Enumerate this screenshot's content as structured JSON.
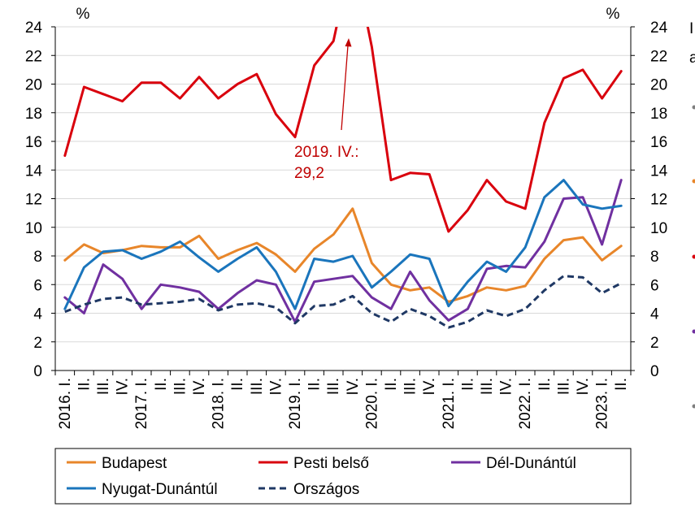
{
  "chart_data": {
    "type": "line",
    "ylim": [
      0,
      24
    ],
    "yticks": [
      0,
      2,
      4,
      6,
      8,
      10,
      12,
      14,
      16,
      18,
      20,
      22,
      24
    ],
    "y_unit_left": "%",
    "y_unit_right": "%",
    "right_axis_ticks": [
      "0",
      "2",
      "4",
      "6",
      "8",
      "10",
      "12",
      "14",
      "16",
      "18",
      "20",
      "22",
      "24"
    ],
    "x_labels": [
      "2016. I.",
      "II.",
      "III.",
      "IV.",
      "2017. I.",
      "II.",
      "III.",
      "IV.",
      "2018. I.",
      "II.",
      "III.",
      "IV.",
      "2019. I.",
      "II.",
      "III.",
      "IV.",
      "2020. I.",
      "II.",
      "III.",
      "IV.",
      "2021. I.",
      "II.",
      "III.",
      "IV.",
      "2022. I.",
      "II.",
      "III.",
      "IV.",
      "2023. I.",
      "II."
    ],
    "series": [
      {
        "name": "Budapest",
        "color": "#e8862a",
        "dash": false,
        "values": [
          7.7,
          8.8,
          8.2,
          8.4,
          8.7,
          8.6,
          8.6,
          9.4,
          7.8,
          8.4,
          8.9,
          8.1,
          6.9,
          8.5,
          9.5,
          11.3,
          7.5,
          6.0,
          5.6,
          5.8,
          4.8,
          5.2,
          5.8,
          5.6,
          5.9,
          7.8,
          9.1,
          9.3,
          7.7,
          8.7
        ]
      },
      {
        "name": "Pesti belső",
        "color": "#d9000d",
        "dash": false,
        "values": [
          15.0,
          19.8,
          19.3,
          18.8,
          20.1,
          20.1,
          19.0,
          20.5,
          19.0,
          20.0,
          20.7,
          17.9,
          16.3,
          21.3,
          23.0,
          29.2,
          22.6,
          13.3,
          13.8,
          13.7,
          9.7,
          11.2,
          13.3,
          11.8,
          11.3,
          17.3,
          20.4,
          21.0,
          19.0,
          20.9
        ]
      },
      {
        "name": "Dél-Dunántúl",
        "color": "#7030a0",
        "dash": false,
        "values": [
          5.1,
          4.0,
          7.4,
          6.4,
          4.3,
          6.0,
          5.8,
          5.5,
          4.3,
          5.4,
          6.3,
          6.0,
          3.4,
          6.2,
          6.4,
          6.6,
          5.1,
          4.3,
          6.9,
          4.9,
          3.5,
          4.3,
          7.1,
          7.3,
          7.2,
          9.0,
          12.0,
          12.1,
          8.8,
          13.3
        ]
      },
      {
        "name": "Nyugat-Dunántúl",
        "color": "#1a75bc",
        "dash": false,
        "values": [
          4.3,
          7.2,
          8.3,
          8.4,
          7.8,
          8.3,
          9.0,
          7.9,
          6.9,
          7.8,
          8.6,
          6.9,
          4.3,
          7.8,
          7.6,
          8.0,
          5.8,
          6.9,
          8.1,
          7.8,
          4.5,
          6.2,
          7.6,
          6.9,
          8.6,
          12.1,
          13.3,
          11.6,
          11.3,
          11.5
        ]
      },
      {
        "name": "Országos",
        "color": "#1f3864",
        "dash": true,
        "values": [
          4.1,
          4.6,
          5.0,
          5.1,
          4.6,
          4.7,
          4.8,
          5.0,
          4.2,
          4.6,
          4.7,
          4.4,
          3.3,
          4.5,
          4.6,
          5.2,
          4.0,
          3.4,
          4.3,
          3.8,
          3.0,
          3.4,
          4.2,
          3.8,
          4.3,
          5.6,
          6.6,
          6.5,
          5.4,
          6.1
        ]
      }
    ],
    "annotation": {
      "line1": "2019. IV.:",
      "line2": "29,2",
      "color": "#c00000"
    },
    "right_edge_fragments": [
      "I",
      "a"
    ]
  }
}
